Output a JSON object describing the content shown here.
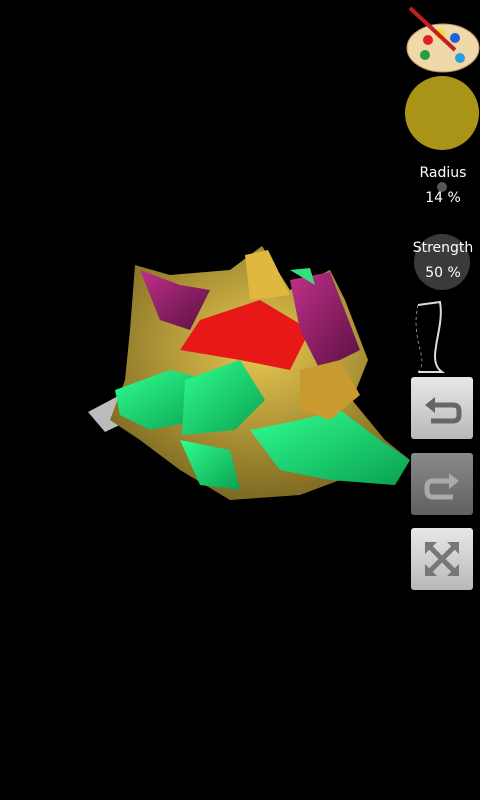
{
  "controls": {
    "radius": {
      "label": "Radius",
      "value": "14 %"
    },
    "strength": {
      "label": "Strength",
      "value": "50 %"
    }
  }
}
